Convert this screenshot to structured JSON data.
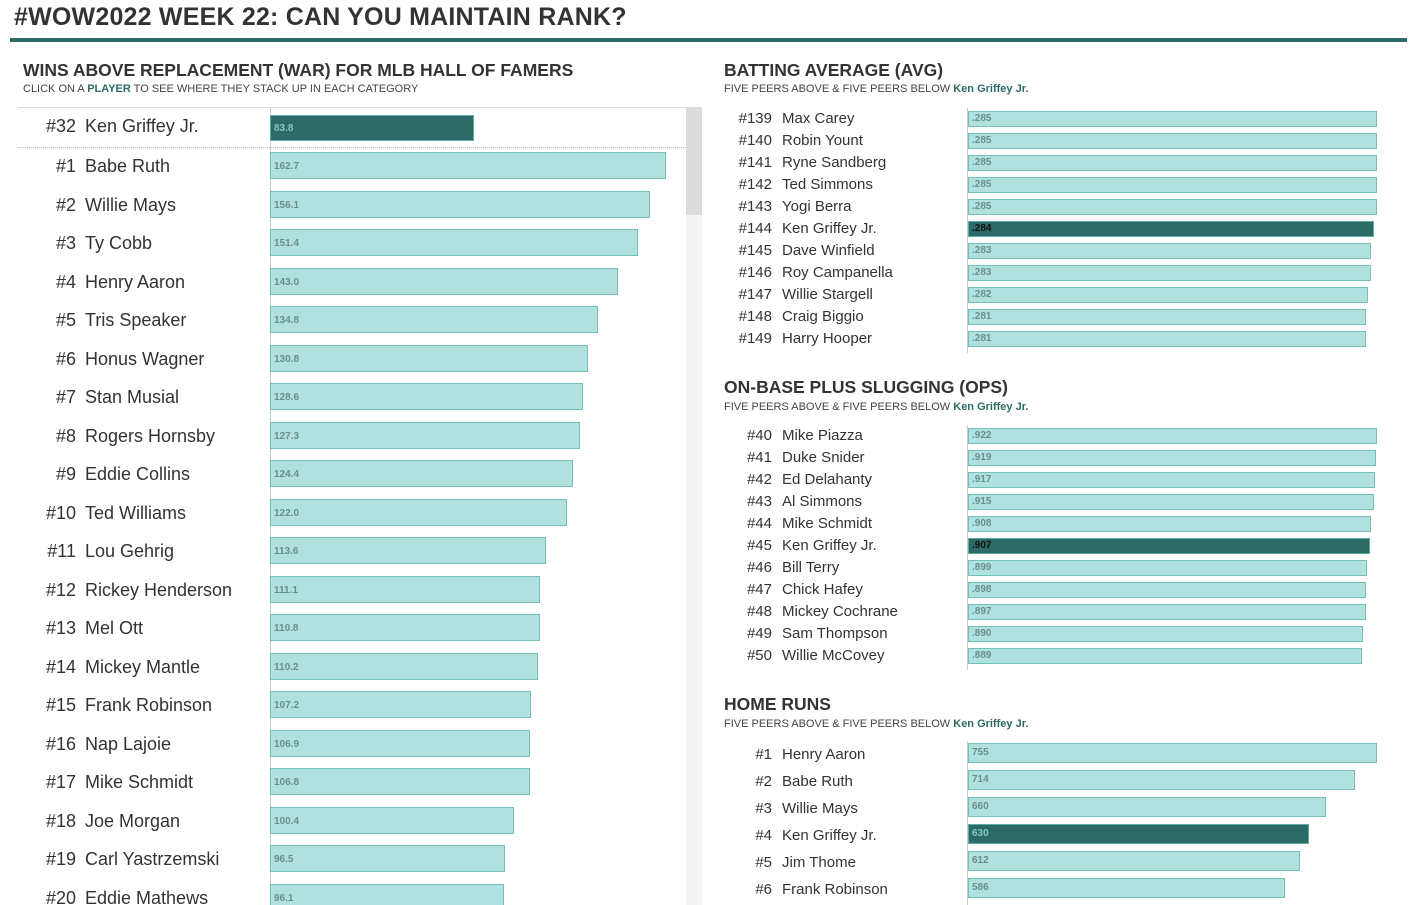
{
  "page": {
    "title": "#WOW2022 WEEK 22: CAN YOU MAINTAIN RANK?",
    "accent_color": "#2c6b65",
    "bar_color": "#b0e1df",
    "bar_border_color": "#72c2ba",
    "selected_player": "Ken Griffey Jr."
  },
  "war_panel": {
    "title": "WINS ABOVE REPLACEMENT (WAR) FOR MLB HALL OF FAMERS",
    "subtitle_pre": "CLICK ON A ",
    "subtitle_hl": "PLAYER",
    "subtitle_post": " TO SEE WHERE THEY STACK UP IN EACH CATEGORY"
  },
  "right_panels": {
    "subtitle_pre": "FIVE PEERS ABOVE & FIVE PEERS BELOW ",
    "subtitle_hl": "Ken Griffey Jr."
  },
  "chart_data": [
    {
      "type": "bar",
      "orientation": "horizontal",
      "title": "WINS ABOVE REPLACEMENT (WAR) FOR MLB HALL OF FAMERS",
      "xlim": [
        0,
        170
      ],
      "selected": {
        "rank": "#32",
        "name": "Ken Griffey Jr.",
        "value": 83.8,
        "label": "83.8"
      },
      "rows": [
        {
          "rank": "#1",
          "name": "Babe Ruth",
          "value": 162.7,
          "label": "162.7"
        },
        {
          "rank": "#2",
          "name": "Willie Mays",
          "value": 156.1,
          "label": "156.1"
        },
        {
          "rank": "#3",
          "name": "Ty Cobb",
          "value": 151.4,
          "label": "151.4"
        },
        {
          "rank": "#4",
          "name": "Henry Aaron",
          "value": 143.0,
          "label": "143.0"
        },
        {
          "rank": "#5",
          "name": "Tris Speaker",
          "value": 134.8,
          "label": "134.8"
        },
        {
          "rank": "#6",
          "name": "Honus Wagner",
          "value": 130.8,
          "label": "130.8"
        },
        {
          "rank": "#7",
          "name": "Stan Musial",
          "value": 128.6,
          "label": "128.6"
        },
        {
          "rank": "#8",
          "name": "Rogers Hornsby",
          "value": 127.3,
          "label": "127.3"
        },
        {
          "rank": "#9",
          "name": "Eddie Collins",
          "value": 124.4,
          "label": "124.4"
        },
        {
          "rank": "#10",
          "name": "Ted Williams",
          "value": 122.0,
          "label": "122.0"
        },
        {
          "rank": "#11",
          "name": "Lou Gehrig",
          "value": 113.6,
          "label": "113.6"
        },
        {
          "rank": "#12",
          "name": "Rickey Henderson",
          "value": 111.1,
          "label": "111.1"
        },
        {
          "rank": "#13",
          "name": "Mel Ott",
          "value": 110.8,
          "label": "110.8"
        },
        {
          "rank": "#14",
          "name": "Mickey Mantle",
          "value": 110.2,
          "label": "110.2"
        },
        {
          "rank": "#15",
          "name": "Frank Robinson",
          "value": 107.2,
          "label": "107.2"
        },
        {
          "rank": "#16",
          "name": "Nap Lajoie",
          "value": 106.9,
          "label": "106.9"
        },
        {
          "rank": "#17",
          "name": "Mike Schmidt",
          "value": 106.8,
          "label": "106.8"
        },
        {
          "rank": "#18",
          "name": "Joe Morgan",
          "value": 100.4,
          "label": "100.4"
        },
        {
          "rank": "#19",
          "name": "Carl Yastrzemski",
          "value": 96.5,
          "label": "96.5"
        },
        {
          "rank": "#20",
          "name": "Eddie Mathews",
          "value": 96.1,
          "label": "96.1"
        }
      ]
    },
    {
      "type": "bar",
      "orientation": "horizontal",
      "title": "BATTING AVERAGE (AVG)",
      "xlim": [
        0,
        0.285
      ],
      "rows": [
        {
          "rank": "#139",
          "name": "Max Carey",
          "value": 0.285,
          "label": ".285"
        },
        {
          "rank": "#140",
          "name": "Robin Yount",
          "value": 0.285,
          "label": ".285"
        },
        {
          "rank": "#141",
          "name": "Ryne Sandberg",
          "value": 0.285,
          "label": ".285"
        },
        {
          "rank": "#142",
          "name": "Ted Simmons",
          "value": 0.285,
          "label": ".285"
        },
        {
          "rank": "#143",
          "name": "Yogi Berra",
          "value": 0.285,
          "label": ".285"
        },
        {
          "rank": "#144",
          "name": "Ken Griffey Jr.",
          "value": 0.284,
          "label": ".284",
          "selected": true
        },
        {
          "rank": "#145",
          "name": "Dave Winfield",
          "value": 0.283,
          "label": ".283"
        },
        {
          "rank": "#146",
          "name": "Roy Campanella",
          "value": 0.283,
          "label": ".283"
        },
        {
          "rank": "#147",
          "name": "Willie Stargell",
          "value": 0.282,
          "label": ".282"
        },
        {
          "rank": "#148",
          "name": "Craig Biggio",
          "value": 0.281,
          "label": ".281"
        },
        {
          "rank": "#149",
          "name": "Harry Hooper",
          "value": 0.281,
          "label": ".281"
        }
      ]
    },
    {
      "type": "bar",
      "orientation": "horizontal",
      "title": "ON-BASE PLUS SLUGGING (OPS)",
      "xlim": [
        0,
        0.922
      ],
      "rows": [
        {
          "rank": "#40",
          "name": "Mike Piazza",
          "value": 0.922,
          "label": ".922"
        },
        {
          "rank": "#41",
          "name": "Duke Snider",
          "value": 0.919,
          "label": ".919"
        },
        {
          "rank": "#42",
          "name": "Ed Delahanty",
          "value": 0.917,
          "label": ".917"
        },
        {
          "rank": "#43",
          "name": "Al Simmons",
          "value": 0.915,
          "label": ".915"
        },
        {
          "rank": "#44",
          "name": "Mike Schmidt",
          "value": 0.908,
          "label": ".908"
        },
        {
          "rank": "#45",
          "name": "Ken Griffey Jr.",
          "value": 0.907,
          "label": ".907",
          "selected": true
        },
        {
          "rank": "#46",
          "name": "Bill Terry",
          "value": 0.899,
          "label": ".899"
        },
        {
          "rank": "#47",
          "name": "Chick Hafey",
          "value": 0.898,
          "label": ".898"
        },
        {
          "rank": "#48",
          "name": "Mickey Cochrane",
          "value": 0.897,
          "label": ".897"
        },
        {
          "rank": "#49",
          "name": "Sam Thompson",
          "value": 0.89,
          "label": ".890"
        },
        {
          "rank": "#50",
          "name": "Willie McCovey",
          "value": 0.889,
          "label": ".889"
        }
      ]
    },
    {
      "type": "bar",
      "orientation": "horizontal",
      "title": "HOME RUNS",
      "xlim": [
        0,
        755
      ],
      "rows": [
        {
          "rank": "#1",
          "name": "Henry Aaron",
          "value": 755,
          "label": "755"
        },
        {
          "rank": "#2",
          "name": "Babe Ruth",
          "value": 714,
          "label": "714"
        },
        {
          "rank": "#3",
          "name": "Willie Mays",
          "value": 660,
          "label": "660"
        },
        {
          "rank": "#4",
          "name": "Ken Griffey Jr.",
          "value": 630,
          "label": "630",
          "selected": true
        },
        {
          "rank": "#5",
          "name": "Jim Thome",
          "value": 612,
          "label": "612"
        },
        {
          "rank": "#6",
          "name": "Frank Robinson",
          "value": 586,
          "label": "586"
        }
      ]
    }
  ]
}
